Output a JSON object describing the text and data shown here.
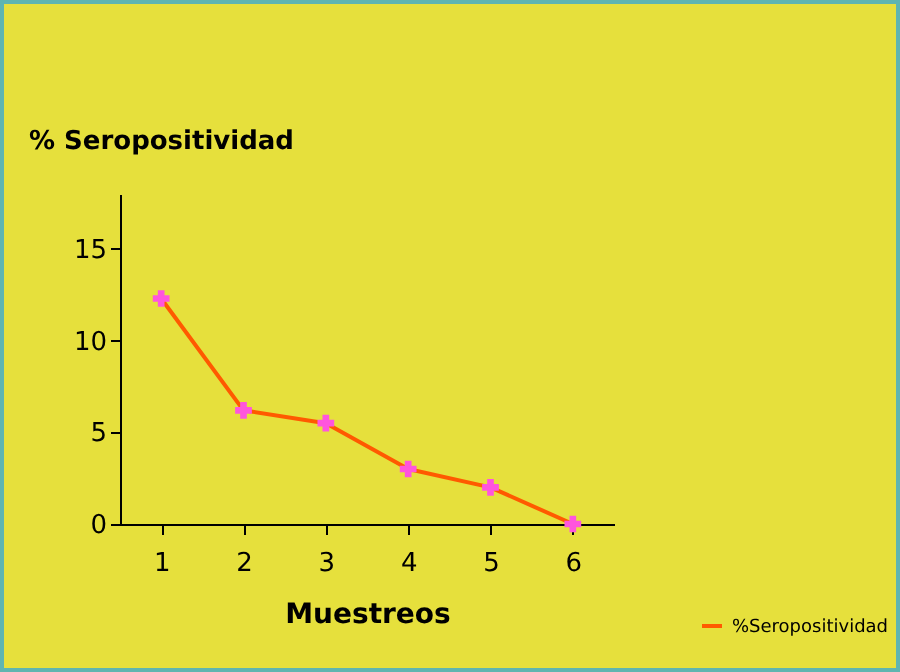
{
  "chart_data": {
    "type": "line",
    "ylabel": "% Seropositividad",
    "xlabel": "Muestreos",
    "categories": [
      "1",
      "2",
      "3",
      "4",
      "5",
      "6"
    ],
    "series": [
      {
        "name": "%Seropositividad",
        "color": "#ff5a00",
        "values": [
          12.3,
          6.2,
          5.5,
          3.0,
          2.0,
          0
        ]
      }
    ],
    "ylim": [
      0,
      18
    ],
    "yticks": [
      0,
      5,
      10,
      15
    ],
    "grid": false,
    "legend": "bottom right",
    "marker": "cross",
    "line_style": "solid"
  }
}
